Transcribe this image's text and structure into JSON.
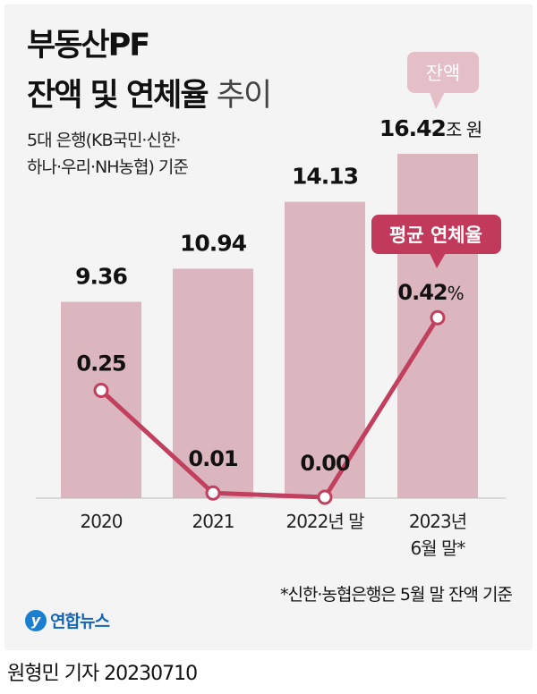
{
  "title_line1": "부동산PF",
  "title_line2_bold": "잔액 및 연체율",
  "title_line2_light": "추이",
  "subtitle_line1": "5대 은행(KB국민·신한·",
  "subtitle_line2": "하나·우리·NH농협) 기준",
  "footnote": "*신한·농협은행은 5월 말 잔액 기준",
  "logo": "연합뉴스",
  "byline": "원형민 기자  20230710",
  "colors": {
    "bar": "#dbb6bf",
    "line": "#c2405f",
    "bubble_balance": "#e4bfc7",
    "bubble_rate": "#c13a5c",
    "panel": "#f4f4f4"
  },
  "chart_data": {
    "type": "bar+line",
    "categories": [
      "2020",
      "2021",
      "2022년 말",
      "2023년\n6월 말*"
    ],
    "series": [
      {
        "name": "잔액",
        "unit": "조 원",
        "type": "bar",
        "values": [
          9.36,
          10.94,
          14.13,
          16.42
        ],
        "labels": [
          "9.36",
          "10.94",
          "14.13",
          "16.42"
        ]
      },
      {
        "name": "평균 연체율",
        "unit": "%",
        "type": "line",
        "values": [
          0.25,
          0.01,
          0.0,
          0.42
        ],
        "labels": [
          "0.25",
          "0.01",
          "0.00",
          "0.42"
        ]
      }
    ],
    "last_bar_unit_label": "조 원",
    "last_point_unit_label": "%"
  }
}
